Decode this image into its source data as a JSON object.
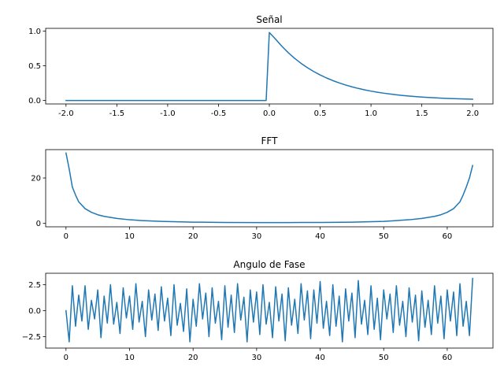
{
  "colors": {
    "series": "#1f77b4"
  },
  "chart_data": [
    {
      "type": "line",
      "title": "Señal",
      "xlabel": "",
      "ylabel": "",
      "xlim": [
        -2.2,
        2.2
      ],
      "ylim": [
        -0.05,
        1.04
      ],
      "xticks": [
        -2.0,
        -1.5,
        -1.0,
        -0.5,
        0.0,
        0.5,
        1.0,
        1.5,
        2.0
      ],
      "xtick_labels": [
        "-2.0",
        "-1.5",
        "-1.0",
        "-0.5",
        "0.0",
        "0.5",
        "1.0",
        "1.5",
        "2.0"
      ],
      "yticks": [
        0.0,
        0.5,
        1.0
      ],
      "ytick_labels": [
        "0.0",
        "0.5",
        "1.0"
      ],
      "series": [
        {
          "name": "señal",
          "x": [
            -2.0,
            -0.03125,
            0.0,
            0.0625,
            0.125,
            0.1875,
            0.25,
            0.3125,
            0.375,
            0.4375,
            0.5,
            0.5625,
            0.625,
            0.6875,
            0.75,
            0.8125,
            0.875,
            0.9375,
            1.0,
            1.0625,
            1.125,
            1.1875,
            1.25,
            1.3125,
            1.375,
            1.4375,
            1.5,
            1.5625,
            1.625,
            1.6875,
            1.75,
            1.8125,
            1.875,
            1.9375,
            2.0
          ],
          "y": [
            0.0,
            0.0,
            0.98,
            0.8825,
            0.7788,
            0.6873,
            0.6065,
            0.5353,
            0.4724,
            0.4169,
            0.3679,
            0.3247,
            0.2865,
            0.2528,
            0.2231,
            0.1969,
            0.1738,
            0.1534,
            0.1353,
            0.1194,
            0.1054,
            0.093,
            0.0821,
            0.0724,
            0.0639,
            0.0564,
            0.0498,
            0.0439,
            0.0388,
            0.0342,
            0.0302,
            0.0267,
            0.0235,
            0.0208,
            0.0183
          ]
        }
      ]
    },
    {
      "type": "line",
      "title": "FFT",
      "xlabel": "",
      "ylabel": "",
      "xlim": [
        -3.2,
        67.2
      ],
      "ylim": [
        -1.5,
        32.5
      ],
      "xticks": [
        0,
        10,
        20,
        30,
        40,
        50,
        60
      ],
      "xtick_labels": [
        "0",
        "10",
        "20",
        "30",
        "40",
        "50",
        "60"
      ],
      "yticks": [
        0,
        20
      ],
      "ytick_labels": [
        "0",
        "20"
      ],
      "series": [
        {
          "name": "fft",
          "x": [
            0,
            0.5,
            1,
            1.5,
            2,
            3,
            4,
            5,
            6,
            8,
            10,
            12,
            15,
            20,
            25,
            30,
            32,
            35,
            40,
            45,
            50,
            52,
            54,
            56,
            58,
            59,
            60,
            61,
            61.5,
            62,
            62.5,
            63,
            63.5,
            64
          ],
          "y": [
            31,
            24,
            16,
            12.5,
            9.5,
            6.5,
            4.9,
            3.8,
            3.1,
            2.2,
            1.6,
            1.25,
            0.9,
            0.55,
            0.42,
            0.37,
            0.36,
            0.37,
            0.42,
            0.55,
            0.9,
            1.25,
            1.6,
            2.2,
            3.1,
            3.8,
            4.9,
            6.5,
            8,
            9.5,
            12.5,
            16,
            20,
            25.5
          ]
        }
      ]
    },
    {
      "type": "line",
      "title": "Angulo de Fase",
      "xlabel": "",
      "ylabel": "",
      "xlim": [
        -3.2,
        67.2
      ],
      "ylim": [
        -3.6,
        3.6
      ],
      "xticks": [
        0,
        10,
        20,
        30,
        40,
        50,
        60
      ],
      "xtick_labels": [
        "0",
        "10",
        "20",
        "30",
        "40",
        "50",
        "60"
      ],
      "yticks": [
        -2.5,
        0.0,
        2.5
      ],
      "ytick_labels": [
        "−2.5",
        "0.0",
        "2.5"
      ],
      "series": [
        {
          "name": "fase",
          "x": [
            0,
            0.5,
            1,
            1.5,
            2,
            2.5,
            3,
            3.5,
            4,
            4.5,
            5,
            5.5,
            6,
            6.5,
            7,
            7.5,
            8,
            8.5,
            9,
            9.5,
            10,
            10.5,
            11,
            11.5,
            12,
            12.5,
            13,
            13.5,
            14,
            14.5,
            15,
            15.5,
            16,
            16.5,
            17,
            17.5,
            18,
            18.5,
            19,
            19.5,
            20,
            20.5,
            21,
            21.5,
            22,
            22.5,
            23,
            23.5,
            24,
            24.5,
            25,
            25.5,
            26,
            26.5,
            27,
            27.5,
            28,
            28.5,
            29,
            29.5,
            30,
            30.5,
            31,
            31.5,
            32,
            32.5,
            33,
            33.5,
            34,
            34.5,
            35,
            35.5,
            36,
            36.5,
            37,
            37.5,
            38,
            38.5,
            39,
            39.5,
            40,
            40.5,
            41,
            41.5,
            42,
            42.5,
            43,
            43.5,
            44,
            44.5,
            45,
            45.5,
            46,
            46.5,
            47,
            47.5,
            48,
            48.5,
            49,
            49.5,
            50,
            50.5,
            51,
            51.5,
            52,
            52.5,
            53,
            53.5,
            54,
            54.5,
            55,
            55.5,
            56,
            56.5,
            57,
            57.5,
            58,
            58.5,
            59,
            59.5,
            60,
            60.5,
            61,
            61.5,
            62,
            62.5,
            63,
            63.5,
            64
          ],
          "y": [
            0.0,
            -3.0,
            2.4,
            -1.5,
            1.5,
            -1.0,
            2.4,
            -1.8,
            1.0,
            -0.8,
            2.0,
            -2.6,
            1.4,
            -1.2,
            2.5,
            -1.3,
            0.8,
            -2.2,
            2.2,
            -0.7,
            1.4,
            -1.8,
            2.6,
            -1.1,
            0.9,
            -2.5,
            2.0,
            -0.9,
            1.6,
            -1.9,
            2.3,
            -1.0,
            1.2,
            -2.4,
            2.5,
            -1.4,
            0.7,
            -2.0,
            2.1,
            -3.0,
            1.1,
            -1.5,
            2.6,
            -0.8,
            1.7,
            -2.5,
            2.2,
            -1.2,
            0.9,
            -2.8,
            2.4,
            -1.6,
            1.5,
            -2.1,
            2.6,
            -0.9,
            1.3,
            -3.0,
            2.0,
            -1.1,
            1.8,
            -2.3,
            2.5,
            -1.3,
            0.8,
            -2.6,
            2.3,
            -1.0,
            1.6,
            -2.9,
            2.2,
            -1.4,
            1.1,
            -2.2,
            2.6,
            -0.9,
            1.9,
            -2.7,
            2.0,
            -1.2,
            2.8,
            -1.7,
            0.9,
            -2.4,
            2.5,
            -1.5,
            1.4,
            -3.0,
            2.1,
            -1.0,
            1.7,
            -2.6,
            2.9,
            -1.3,
            1.0,
            -2.3,
            2.4,
            -1.8,
            1.2,
            -2.8,
            2.0,
            -0.8,
            1.6,
            -2.1,
            2.4,
            -1.4,
            0.9,
            -2.5,
            2.2,
            -1.1,
            1.5,
            -2.9,
            1.9,
            -1.6,
            1.0,
            -2.3,
            2.4,
            -1.2,
            1.4,
            -2.7,
            2.0,
            -1.0,
            1.8,
            -2.4,
            2.6,
            -1.5,
            0.9,
            -2.4,
            3.1
          ]
        }
      ]
    }
  ]
}
